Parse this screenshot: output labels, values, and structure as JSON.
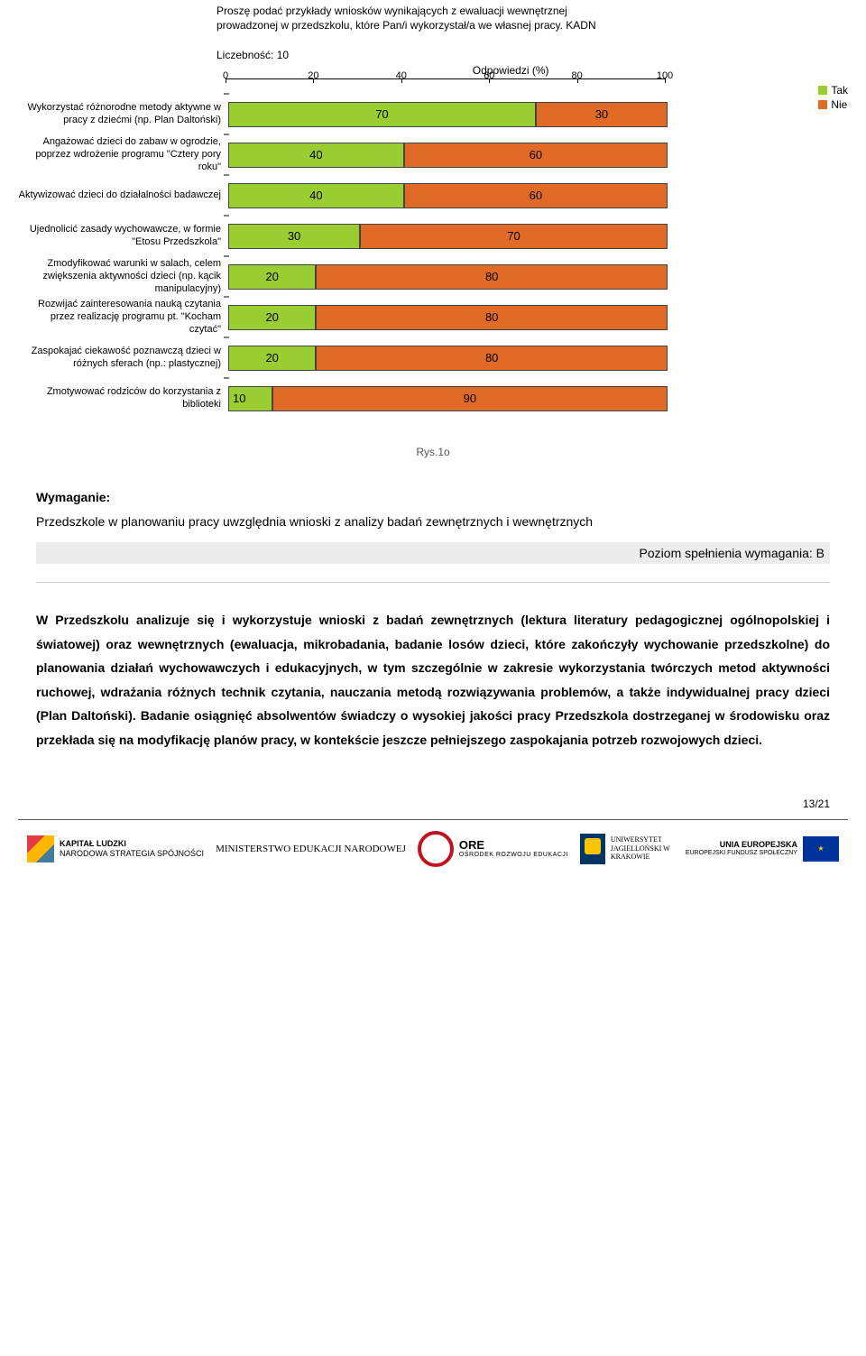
{
  "chart": {
    "title": "Proszę podać przykłady wniosków wynikających z ewaluacji wewnętrznej prowadzonej w przedszkolu, które Pan/i wykorzystał/a we własnej pracy. KADN",
    "meta": "Liczebność: 10",
    "axis_title": "Odpowiedzi (%)",
    "axis_ticks": [
      0,
      20,
      40,
      60,
      80,
      100
    ],
    "legend_yes": "Tak",
    "legend_no": "Nie",
    "color_yes": "#9acd32",
    "color_no": "#e06a26",
    "rows": [
      {
        "label": "Wykorzystać różnorodne metody aktywne w pracy z dziećmi (np. Plan Daltoński)",
        "yes": 70,
        "no": 30
      },
      {
        "label": "Angażować dzieci do zabaw w ogrodzie, poprzez  wdrożenie programu \"Cztery pory roku\"",
        "yes": 40,
        "no": 60
      },
      {
        "label": "Aktywizować dzieci do działalności badawczej",
        "yes": 40,
        "no": 60
      },
      {
        "label": "Ujednolicić zasady wychowawcze, w formie \"Etosu Przedszkola\"",
        "yes": 30,
        "no": 70
      },
      {
        "label": "Zmodyfikować warunki w salach, celem zwiększenia aktywności dzieci (np. kącik manipulacyjny)",
        "yes": 20,
        "no": 80
      },
      {
        "label": "Rozwijać zainteresowania nauką czytania przez realizację programu pt. \"Kocham czytać\"",
        "yes": 20,
        "no": 80
      },
      {
        "label": "Zaspokajać ciekawość poznawczą dzieci w różnych sferach (np.: plastycznej)",
        "yes": 20,
        "no": 80
      },
      {
        "label": "Zmotywować rodziców do korzystania z biblioteki",
        "yes": 10,
        "no": 90
      }
    ]
  },
  "caption": "Rys.1o",
  "heading": "Wymagan​ie:",
  "sub": "Przedszkole w planowaniu pracy uwzględnia wnioski z analizy badań zewnętrznych i wewnętrznych",
  "level_label": "Poziom spełnienia wymagania: B",
  "body": "W Przedszkolu analizuje się i wykorzystuje wnioski z badań zewnętrznych (lektura literatury pedagogicznej ogólnopolskiej i światowej) oraz wewnętrznych (ewaluacja, mikrobadania, badanie losów dzieci, które zakończyły wychowanie przedszkolne) do planowania działań wychowawczych i edukacyjnych, w tym szczególnie w zakresie wykorzystania twórczych metod aktywności ruchowej, wdrażania różnych technik czytania, nauczania metodą rozwiązywania problemów, a także indywidualnej pracy dzieci (Plan Daltoński). Badanie osiągnięć absolwentów świadczy o wysokiej jakości pracy Przedszkola dostrzeganej w środowisku oraz  przekłada się na modyfikację planów pracy, w kontekście jeszcze pełniejszego zaspokajania potrzeb rozwojowych dzieci.",
  "page_num": "13/21",
  "footer": {
    "kl": "KAPITAŁ LUDZKI",
    "kl_sub": "NARODOWA STRATEGIA SPÓJNOŚCI",
    "men": "MINISTERSTWO EDUKACJI NARODOWEJ",
    "ore": "ORE",
    "ore_sub": "OŚRODEK ROZWOJU EDUKACJI",
    "uj": "UNIWERSYTET JAGIELLOŃSKI W KRAKOWIE",
    "eu": "UNIA EUROPEJSKA",
    "eu_sub": "EUROPEJSKI FUNDUSZ SPOŁECZNY"
  }
}
